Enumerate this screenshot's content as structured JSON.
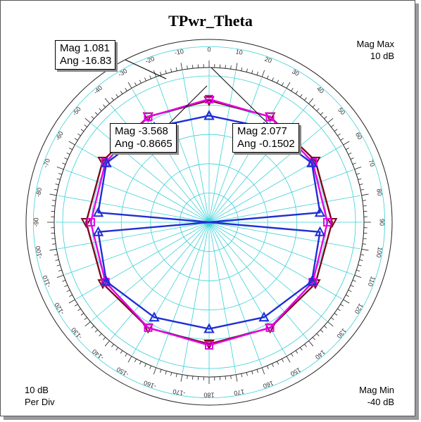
{
  "chart_data": {
    "type": "polar",
    "title": "TPwr_Theta",
    "mag_max_label": "Mag Max",
    "mag_max_value": "10 dB",
    "mag_min_label": "Mag Min",
    "mag_min_value": "-40 dB",
    "per_div_value": "10 dB",
    "per_div_label": "Per Div",
    "rlim_db": [
      -40,
      10
    ],
    "angle_ticks": [
      "0",
      "10",
      "20",
      "30",
      "40",
      "50",
      "60",
      "70",
      "80",
      "90",
      "100",
      "110",
      "120",
      "130",
      "140",
      "150",
      "160",
      "170",
      "180",
      "-170",
      "-160",
      "-150",
      "-140",
      "-130",
      "-120",
      "-110",
      "-100",
      "-90",
      "-80",
      "-70",
      "-60",
      "-50",
      "-40",
      "-30",
      "-20",
      "-10"
    ],
    "grid": true,
    "series": [
      {
        "color": "#7a0a1a",
        "marker": "triangle-down",
        "angles": [
          0,
          30,
          60,
          90,
          120,
          150,
          180
        ],
        "values": [
          1.6,
          1.7,
          1.9,
          2.0,
          1.9,
          1.7,
          1.6
        ]
      },
      {
        "color": "#e600e6",
        "marker": "square",
        "angles": [
          0,
          30,
          60,
          90,
          120,
          150,
          180
        ],
        "values": [
          2.077,
          1.6,
          0.9,
          0.4,
          0.9,
          1.6,
          2.077
        ]
      },
      {
        "color": "#1f2fd6",
        "marker": "triangle-up",
        "angles": [
          0,
          30,
          60,
          85,
          90,
          95,
          120,
          150,
          180
        ],
        "values": [
          -3.568,
          -2.5,
          0.5,
          -2,
          -40,
          -2,
          0.5,
          -2.5,
          -3.568
        ]
      }
    ],
    "markers": [
      {
        "mag": "Mag 1.081",
        "ang": "Ang -16.83"
      },
      {
        "mag": "Mag -3.568",
        "ang": "Ang -0.8665"
      },
      {
        "mag": "Mag 2.077",
        "ang": "Ang -0.1502"
      }
    ]
  }
}
